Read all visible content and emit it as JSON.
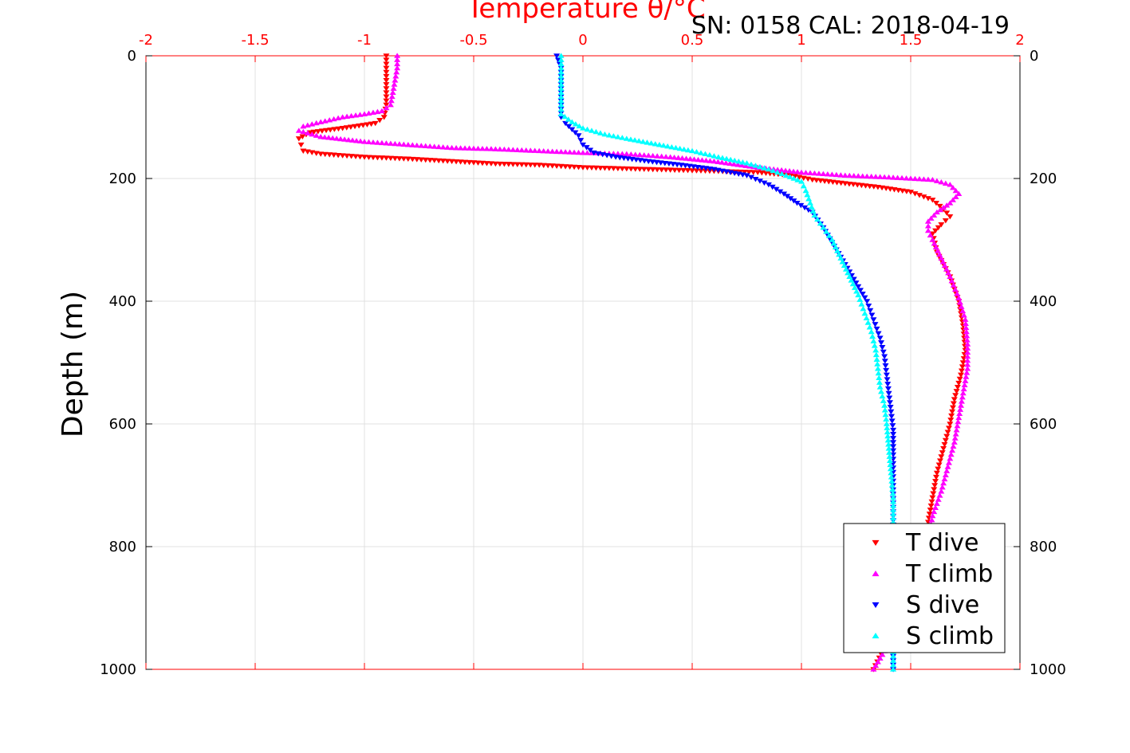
{
  "chart_data": {
    "type": "scatter",
    "title": "Temperature θ/°C",
    "subtitle": "SN: 0158  CAL: 2018-04-19",
    "ylabel": "Depth (m)",
    "xlabel": "",
    "xlim": [
      -2,
      2
    ],
    "ylim": [
      0,
      1000
    ],
    "y_reversed": true,
    "grid": true,
    "legend_position": "bottom-right",
    "x_ticks": [
      "-2",
      "-1.5",
      "-1",
      "-0.5",
      "0",
      "0.5",
      "1",
      "1.5",
      "2"
    ],
    "y_ticks": [
      "0",
      "200",
      "400",
      "600",
      "800",
      "1000"
    ],
    "colors": {
      "axis_top": "#ff0000",
      "axis": "#000000",
      "grid": "#e0e0e0"
    },
    "series": [
      {
        "name": "T dive",
        "marker": "triangle-down",
        "color": "#ff0000",
        "points": [
          [
            -0.9,
            0
          ],
          [
            -0.9,
            20
          ],
          [
            -0.9,
            40
          ],
          [
            -0.9,
            60
          ],
          [
            -0.9,
            80
          ],
          [
            -0.91,
            100
          ],
          [
            -0.95,
            110
          ],
          [
            -1.1,
            118
          ],
          [
            -1.25,
            125
          ],
          [
            -1.3,
            135
          ],
          [
            -1.29,
            145
          ],
          [
            -1.28,
            155
          ],
          [
            -1.2,
            160
          ],
          [
            -1.0,
            165
          ],
          [
            -0.8,
            168
          ],
          [
            -0.6,
            172
          ],
          [
            -0.4,
            176
          ],
          [
            -0.2,
            178
          ],
          [
            0.0,
            182
          ],
          [
            0.2,
            184
          ],
          [
            0.4,
            186
          ],
          [
            0.6,
            188
          ],
          [
            0.8,
            190
          ],
          [
            0.95,
            195
          ],
          [
            1.05,
            202
          ],
          [
            1.2,
            208
          ],
          [
            1.35,
            214
          ],
          [
            1.5,
            222
          ],
          [
            1.6,
            235
          ],
          [
            1.65,
            250
          ],
          [
            1.68,
            262
          ],
          [
            1.64,
            275
          ],
          [
            1.6,
            290
          ],
          [
            1.62,
            320
          ],
          [
            1.68,
            360
          ],
          [
            1.72,
            400
          ],
          [
            1.74,
            440
          ],
          [
            1.75,
            480
          ],
          [
            1.73,
            520
          ],
          [
            1.7,
            560
          ],
          [
            1.68,
            600
          ],
          [
            1.65,
            640
          ],
          [
            1.62,
            680
          ],
          [
            1.6,
            720
          ],
          [
            1.58,
            760
          ],
          [
            1.55,
            800
          ],
          [
            1.5,
            850
          ],
          [
            1.45,
            900
          ],
          [
            1.4,
            950
          ],
          [
            1.33,
            1000
          ]
        ]
      },
      {
        "name": "T climb",
        "marker": "triangle-up",
        "color": "#ff00ff",
        "points": [
          [
            -0.85,
            0
          ],
          [
            -0.85,
            20
          ],
          [
            -0.86,
            40
          ],
          [
            -0.87,
            60
          ],
          [
            -0.88,
            80
          ],
          [
            -0.92,
            90
          ],
          [
            -1.0,
            95
          ],
          [
            -1.1,
            100
          ],
          [
            -1.2,
            108
          ],
          [
            -1.28,
            115
          ],
          [
            -1.3,
            122
          ],
          [
            -1.2,
            132
          ],
          [
            -1.0,
            140
          ],
          [
            -0.8,
            145
          ],
          [
            -0.6,
            150
          ],
          [
            -0.4,
            152
          ],
          [
            -0.2,
            155
          ],
          [
            0.0,
            158
          ],
          [
            0.2,
            160
          ],
          [
            0.4,
            165
          ],
          [
            0.6,
            172
          ],
          [
            0.8,
            182
          ],
          [
            1.0,
            190
          ],
          [
            1.2,
            195
          ],
          [
            1.4,
            198
          ],
          [
            1.6,
            202
          ],
          [
            1.68,
            210
          ],
          [
            1.72,
            225
          ],
          [
            1.68,
            240
          ],
          [
            1.62,
            255
          ],
          [
            1.58,
            270
          ],
          [
            1.58,
            285
          ],
          [
            1.6,
            300
          ],
          [
            1.64,
            330
          ],
          [
            1.68,
            360
          ],
          [
            1.72,
            395
          ],
          [
            1.75,
            430
          ],
          [
            1.76,
            470
          ],
          [
            1.76,
            510
          ],
          [
            1.74,
            550
          ],
          [
            1.72,
            590
          ],
          [
            1.7,
            630
          ],
          [
            1.67,
            670
          ],
          [
            1.64,
            710
          ],
          [
            1.6,
            750
          ],
          [
            1.58,
            790
          ],
          [
            1.55,
            830
          ],
          [
            1.5,
            880
          ],
          [
            1.43,
            930
          ],
          [
            1.38,
            970
          ],
          [
            1.33,
            1000
          ]
        ]
      },
      {
        "name": "S dive",
        "marker": "triangle-down",
        "color": "#0000ff",
        "points": [
          [
            -0.12,
            0
          ],
          [
            -0.1,
            20
          ],
          [
            -0.1,
            40
          ],
          [
            -0.1,
            60
          ],
          [
            -0.1,
            80
          ],
          [
            -0.1,
            100
          ],
          [
            -0.08,
            110
          ],
          [
            -0.05,
            120
          ],
          [
            -0.02,
            130
          ],
          [
            0.0,
            145
          ],
          [
            0.05,
            158
          ],
          [
            0.15,
            165
          ],
          [
            0.3,
            172
          ],
          [
            0.45,
            178
          ],
          [
            0.6,
            185
          ],
          [
            0.75,
            195
          ],
          [
            0.85,
            210
          ],
          [
            0.92,
            225
          ],
          [
            0.98,
            240
          ],
          [
            1.05,
            255
          ],
          [
            1.1,
            280
          ],
          [
            1.15,
            310
          ],
          [
            1.2,
            340
          ],
          [
            1.25,
            370
          ],
          [
            1.3,
            400
          ],
          [
            1.33,
            430
          ],
          [
            1.36,
            460
          ],
          [
            1.38,
            490
          ],
          [
            1.39,
            520
          ],
          [
            1.4,
            550
          ],
          [
            1.41,
            580
          ],
          [
            1.42,
            610
          ],
          [
            1.42,
            650
          ],
          [
            1.42,
            700
          ],
          [
            1.42,
            750
          ],
          [
            1.42,
            800
          ],
          [
            1.42,
            850
          ],
          [
            1.42,
            900
          ],
          [
            1.42,
            950
          ],
          [
            1.42,
            1000
          ]
        ]
      },
      {
        "name": "S climb",
        "marker": "triangle-up",
        "color": "#00ffff",
        "points": [
          [
            -0.1,
            0
          ],
          [
            -0.1,
            20
          ],
          [
            -0.1,
            40
          ],
          [
            -0.1,
            60
          ],
          [
            -0.1,
            80
          ],
          [
            -0.1,
            95
          ],
          [
            -0.05,
            108
          ],
          [
            0.0,
            118
          ],
          [
            0.1,
            128
          ],
          [
            0.2,
            135
          ],
          [
            0.35,
            145
          ],
          [
            0.5,
            155
          ],
          [
            0.62,
            165
          ],
          [
            0.75,
            175
          ],
          [
            0.85,
            185
          ],
          [
            0.93,
            195
          ],
          [
            1.0,
            205
          ],
          [
            1.02,
            220
          ],
          [
            1.04,
            240
          ],
          [
            1.06,
            260
          ],
          [
            1.1,
            280
          ],
          [
            1.14,
            300
          ],
          [
            1.18,
            330
          ],
          [
            1.22,
            360
          ],
          [
            1.26,
            390
          ],
          [
            1.29,
            420
          ],
          [
            1.32,
            450
          ],
          [
            1.34,
            480
          ],
          [
            1.35,
            510
          ],
          [
            1.36,
            540
          ],
          [
            1.38,
            570
          ],
          [
            1.39,
            600
          ],
          [
            1.4,
            640
          ],
          [
            1.41,
            680
          ],
          [
            1.42,
            720
          ],
          [
            1.42,
            760
          ],
          [
            1.42,
            800
          ],
          [
            1.42,
            850
          ],
          [
            1.42,
            900
          ],
          [
            1.42,
            950
          ],
          [
            1.42,
            1000
          ]
        ]
      }
    ]
  }
}
